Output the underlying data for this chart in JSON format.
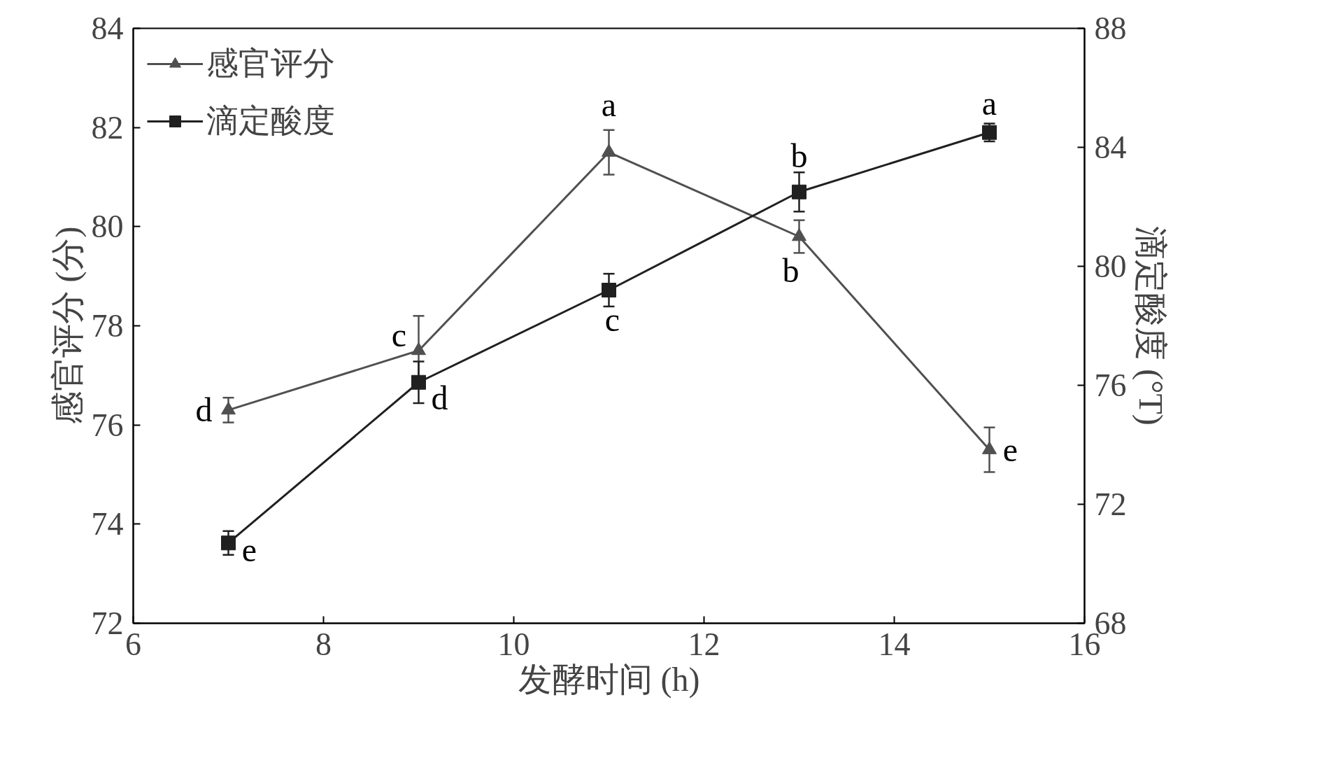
{
  "chart_data": {
    "type": "line",
    "xlabel": "发酵时间 (h)",
    "ylabel": "感官评分 (分)",
    "y2label": "滴定酸度 (°T)",
    "x": [
      7,
      9,
      11,
      13,
      15
    ],
    "series": [
      {
        "name": "感官评分",
        "color": "#505050",
        "marker": "triangle",
        "values": [
          76.3,
          77.5,
          81.5,
          79.8,
          75.5
        ],
        "errors": [
          0.25,
          0.7,
          0.45,
          0.33,
          0.45
        ],
        "value_labels": [
          "d",
          "c",
          "a",
          "b",
          "e"
        ]
      },
      {
        "name": "滴定酸度",
        "color": "#202020",
        "marker": "square",
        "axis": "y2",
        "values": [
          70.7,
          76.1,
          79.2,
          82.5,
          84.5
        ],
        "errors": [
          0.4,
          0.7,
          0.55,
          0.66,
          0.3
        ],
        "value_labels": [
          "e",
          "d",
          "c",
          "b",
          "a"
        ]
      }
    ],
    "xlim": [
      6,
      16
    ],
    "xticks": [
      6,
      8,
      10,
      12,
      14,
      16
    ],
    "ylim": [
      72,
      84
    ],
    "yticks": [
      72,
      74,
      76,
      78,
      80,
      82,
      84
    ],
    "y2lim": [
      68,
      88
    ],
    "y2ticks": [
      68,
      72,
      76,
      80,
      84,
      88
    ],
    "legend": "top left",
    "grid": false,
    "line_style": "solid"
  }
}
